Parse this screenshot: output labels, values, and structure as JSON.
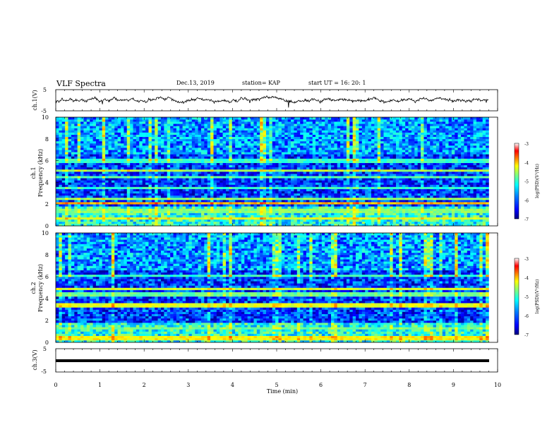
{
  "header": {
    "title": "VLF Spectra",
    "date": "Dec.13, 2019",
    "station": "station= KAP",
    "start": "start  UT =   16: 20: 1"
  },
  "chart_data": [
    {
      "type": "line",
      "title": "",
      "ylabel": "ch.1(V)",
      "xlim": [
        0,
        10
      ],
      "ylim": [
        -5,
        5
      ],
      "y_ticks": [
        "5",
        "-5"
      ],
      "description_level": "noisy waveform fluctuating around 0 V, mostly within -2..2 V"
    },
    {
      "type": "heatmap",
      "ylabel_lines": [
        "ch.1",
        "Frequency  (kHz)"
      ],
      "xlim": [
        0,
        10
      ],
      "ylim": [
        0,
        10
      ],
      "y_ticks": [
        "0",
        "2",
        "4",
        "6",
        "8",
        "10"
      ],
      "colorbar": {
        "label": "log(PSD)(V²/Hz)",
        "ticks": [
          "-3",
          "-4",
          "-5",
          "-6",
          "-7"
        ],
        "range": [
          -7,
          -3
        ]
      },
      "bands": [
        {
          "freq_khz": 0.7,
          "level": -4.6
        },
        {
          "freq_khz": 1.4,
          "level": -5.0
        },
        {
          "freq_khz": 2.1,
          "level": -4.2
        },
        {
          "freq_khz": 2.5,
          "level": -4.9
        },
        {
          "freq_khz": 3.5,
          "level": -5.3
        },
        {
          "freq_khz": 4.5,
          "level": -5.2
        },
        {
          "freq_khz": 5.1,
          "level": -4.8
        },
        {
          "freq_khz": 6.0,
          "level": -5.3
        }
      ]
    },
    {
      "type": "heatmap",
      "ylabel_lines": [
        "ch.2",
        "Frequency  (kHz)"
      ],
      "xlim": [
        0,
        10
      ],
      "ylim": [
        0,
        10
      ],
      "y_ticks": [
        "0",
        "2",
        "4",
        "6",
        "8",
        "10"
      ],
      "colorbar": {
        "label": "log(PSD)(V²/Hz)",
        "ticks": [
          "-3",
          "-4",
          "-5",
          "-6",
          "-7"
        ],
        "range": [
          -7,
          -3
        ]
      },
      "bands": [
        {
          "freq_khz": 0.4,
          "level": -4.5
        },
        {
          "freq_khz": 1.3,
          "level": -5.1
        },
        {
          "freq_khz": 3.4,
          "level": -4.6
        },
        {
          "freq_khz": 4.4,
          "level": -5.1
        },
        {
          "freq_khz": 4.9,
          "level": -4.7
        },
        {
          "freq_khz": 6.1,
          "level": -5.3
        }
      ]
    },
    {
      "type": "line",
      "ylabel": "ch.3(V)",
      "xlim": [
        0,
        10
      ],
      "ylim": [
        -5,
        5
      ],
      "y_ticks": [
        "5",
        "0",
        "-5"
      ],
      "x": [
        0,
        9.8
      ],
      "y": [
        0,
        0
      ],
      "xlabel": "Time  (min)",
      "x_ticks": [
        "0",
        "1",
        "2",
        "3",
        "4",
        "5",
        "6",
        "7",
        "8",
        "9",
        "10"
      ]
    }
  ],
  "colors": {
    "ch1_line": "#000000",
    "ch3_line": "#000000",
    "colormap": [
      "#00007f",
      "#0000ff",
      "#007fff",
      "#00ffff",
      "#7fff7f",
      "#ffff00",
      "#ff7f00",
      "#ff0000",
      "#ffffff"
    ]
  }
}
